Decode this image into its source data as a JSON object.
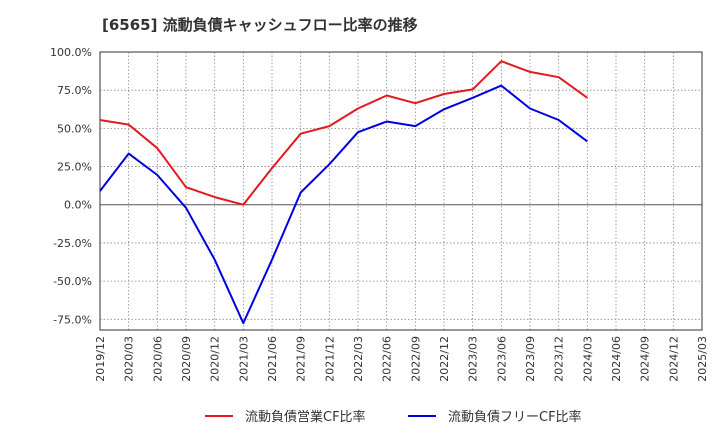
{
  "title": "[6565]  流動負債キャッシュフロー比率の推移",
  "chart_data": {
    "type": "line",
    "title": "[6565]  流動負債キャッシュフロー比率の推移",
    "xlabel": "",
    "ylabel": "",
    "ylim": [
      -82,
      100
    ],
    "y_ticks": [
      100,
      75,
      50,
      25,
      0,
      -25,
      -50,
      -75
    ],
    "y_tick_labels": [
      "100.0%",
      "75.0%",
      "50.0%",
      "25.0%",
      "0.0%",
      "-25.0%",
      "-50.0%",
      "-75.0%"
    ],
    "x_ticks": [
      "2019/12",
      "2020/03",
      "2020/06",
      "2020/09",
      "2020/12",
      "2021/03",
      "2021/06",
      "2021/09",
      "2021/12",
      "2022/03",
      "2022/06",
      "2022/09",
      "2022/12",
      "2023/03",
      "2023/06",
      "2023/09",
      "2023/12",
      "2024/03",
      "2024/06",
      "2024/09",
      "2024/12",
      "2025/03"
    ],
    "grid": true,
    "legend_position": "bottom",
    "series": [
      {
        "name": "流動負債営業CF比率",
        "color": "#e31a1c",
        "x": [
          "2019/12",
          "2020/03",
          "2020/06",
          "2020/09",
          "2020/12",
          "2021/03",
          "2021/06",
          "2021/09",
          "2021/12",
          "2022/03",
          "2022/06",
          "2022/09",
          "2022/12",
          "2023/03",
          "2023/06",
          "2023/09",
          "2023/12",
          "2024/03"
        ],
        "values": [
          55.5,
          52.5,
          37.0,
          11.5,
          5.0,
          0.0,
          24.0,
          46.5,
          51.5,
          63.0,
          71.5,
          66.5,
          72.5,
          75.5,
          94.0,
          87.0,
          83.5,
          70.0
        ]
      },
      {
        "name": "流動負債フリーCF比率",
        "color": "#0000e0",
        "x": [
          "2019/12",
          "2020/03",
          "2020/06",
          "2020/09",
          "2020/12",
          "2021/03",
          "2021/06",
          "2021/09",
          "2021/12",
          "2022/03",
          "2022/06",
          "2022/09",
          "2022/12",
          "2023/03",
          "2023/06",
          "2023/09",
          "2023/12",
          "2024/03"
        ],
        "values": [
          9.0,
          33.5,
          19.5,
          -2.0,
          -36.0,
          -77.5,
          -36.0,
          8.0,
          26.5,
          47.5,
          54.5,
          51.5,
          62.5,
          70.0,
          78.0,
          63.0,
          55.5,
          41.5
        ]
      }
    ]
  }
}
